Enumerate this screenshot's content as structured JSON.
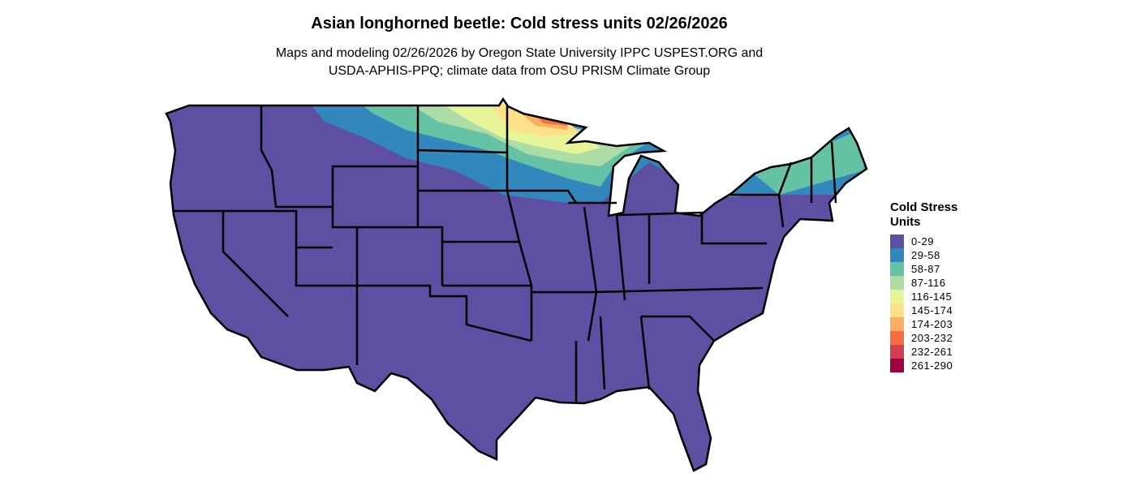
{
  "title": "Asian longhorned beetle: Cold stress units 02/26/2026",
  "subtitle_lines": [
    "Maps and modeling 02/26/2026 by Oregon State University IPPC USPEST.ORG and",
    "USDA-APHIS-PPQ; climate data from OSU PRISM Climate Group"
  ],
  "legend": {
    "title": "Cold Stress Units",
    "items": [
      {
        "label": "0-29",
        "color": "#5E4FA2"
      },
      {
        "label": "29-58",
        "color": "#3288BD"
      },
      {
        "label": "58-87",
        "color": "#66C2A5"
      },
      {
        "label": "87-116",
        "color": "#ABDDA4"
      },
      {
        "label": "116-145",
        "color": "#E6F598"
      },
      {
        "label": "145-174",
        "color": "#FEE08B"
      },
      {
        "label": "174-203",
        "color": "#FDAE61"
      },
      {
        "label": "203-232",
        "color": "#F46D43"
      },
      {
        "label": "232-261",
        "color": "#D53E4F"
      },
      {
        "label": "261-290",
        "color": "#9E0142"
      }
    ]
  }
}
